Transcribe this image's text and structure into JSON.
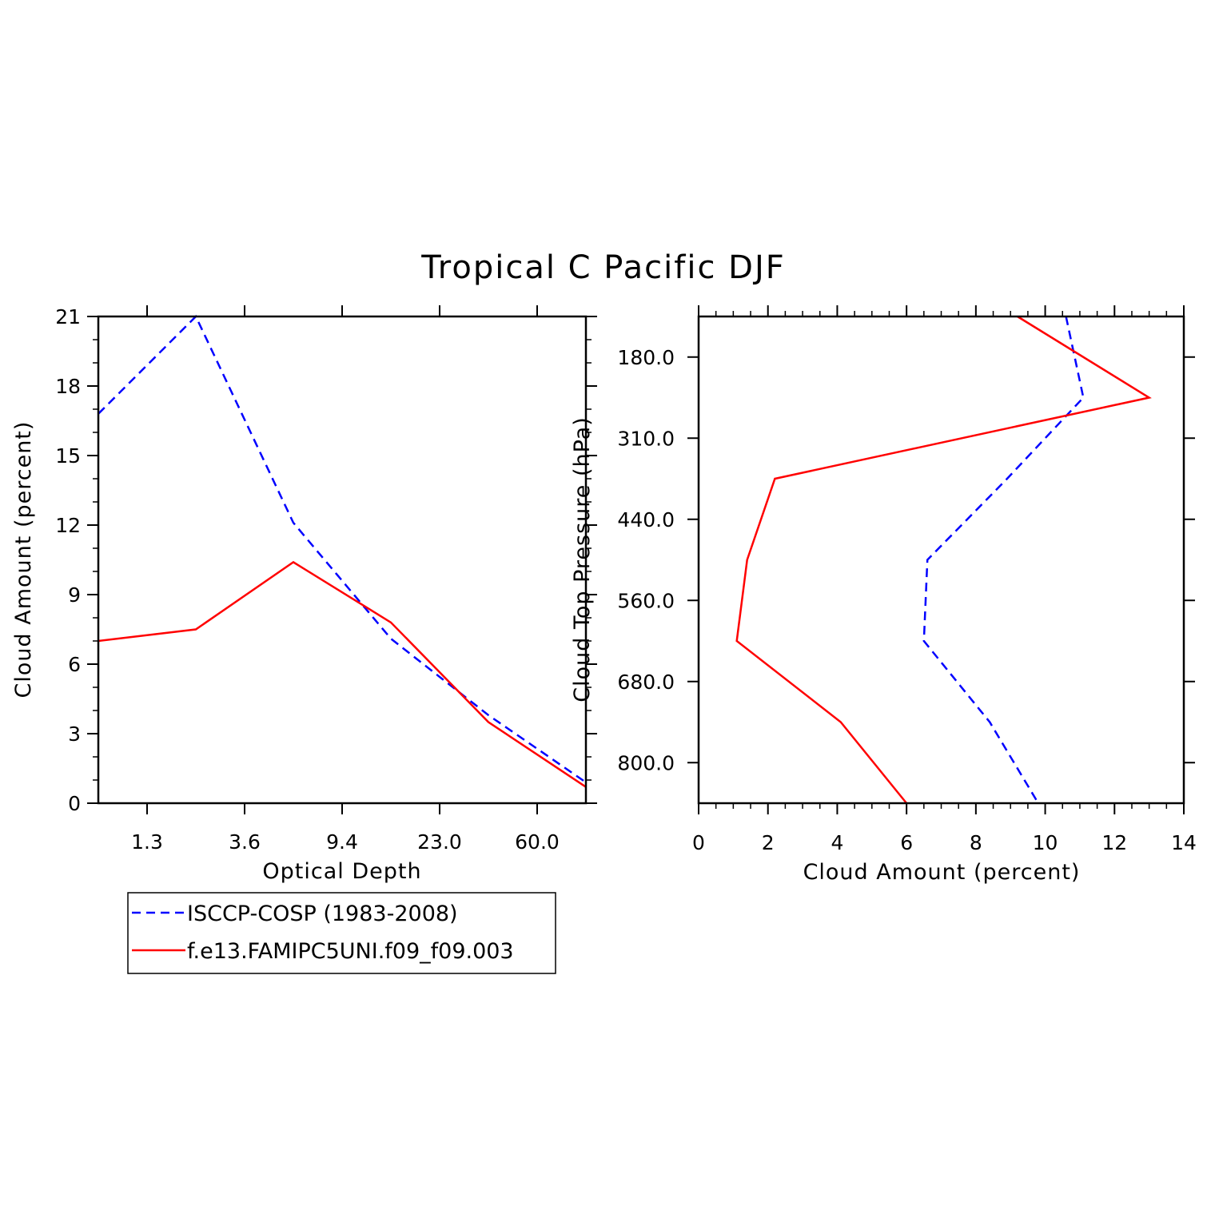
{
  "title": "Tropical C Pacific DJF",
  "colors": {
    "isccp": "#0000ff",
    "model": "#ff0000",
    "axis": "#000000"
  },
  "legend": {
    "placement": "below-left",
    "entries": [
      {
        "label": "ISCCP-COSP (1983-2008)",
        "color": "#0000ff",
        "dash": true
      },
      {
        "label": "f.e13.FAMIPC5UNI.f09_f09.003",
        "color": "#ff0000",
        "dash": false
      }
    ]
  },
  "chart_data": [
    {
      "type": "line",
      "xlabel": "Optical Depth",
      "ylabel": "Cloud Amount (percent)",
      "x_tick_labels": [
        "1.3",
        "3.6",
        "9.4",
        "23.0",
        "60.0"
      ],
      "x_bins": [
        0,
        1,
        2,
        3,
        4,
        5
      ],
      "ylim": [
        0,
        21
      ],
      "y_ticks": [
        0,
        3,
        6,
        9,
        12,
        15,
        18,
        21
      ],
      "series": [
        {
          "name": "ISCCP-COSP (1983-2008)",
          "color": "#0000ff",
          "dash": true,
          "values": [
            16.8,
            21.0,
            12.1,
            7.1,
            3.8,
            0.9
          ]
        },
        {
          "name": "f.e13.FAMIPC5UNI.f09_f09.003",
          "color": "#ff0000",
          "dash": false,
          "values": [
            7.0,
            7.5,
            10.4,
            7.8,
            3.5,
            0.7
          ]
        }
      ]
    },
    {
      "type": "line",
      "xlabel": "Cloud Amount (percent)",
      "ylabel": "Cloud Top Pressure (hPa)",
      "xlim": [
        0,
        14
      ],
      "x_ticks": [
        0,
        2,
        4,
        6,
        8,
        10,
        12,
        14
      ],
      "y_tick_labels": [
        "180.0",
        "310.0",
        "440.0",
        "560.0",
        "680.0",
        "800.0"
      ],
      "y_bins": [
        0,
        1,
        2,
        3,
        4,
        5,
        6
      ],
      "series": [
        {
          "name": "ISCCP-COSP (1983-2008)",
          "color": "#0000ff",
          "dash": true,
          "values": [
            10.6,
            11.1,
            8.9,
            6.6,
            6.5,
            8.4,
            9.8
          ]
        },
        {
          "name": "f.e13.FAMIPC5UNI.f09_f09.003",
          "color": "#ff0000",
          "dash": false,
          "values": [
            9.2,
            13.0,
            2.2,
            1.4,
            1.1,
            4.1,
            6.0
          ]
        }
      ]
    }
  ]
}
